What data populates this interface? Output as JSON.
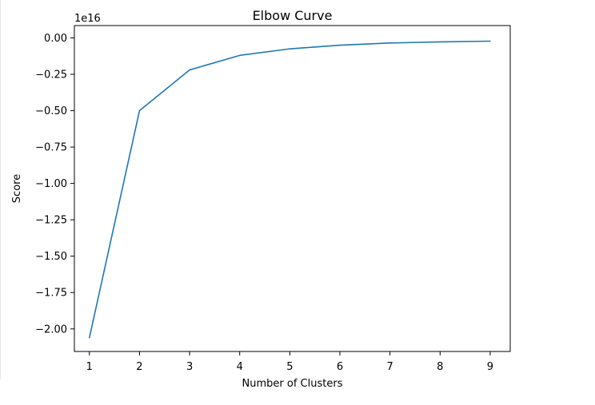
{
  "chart_data": {
    "type": "line",
    "title": "Elbow Curve",
    "xlabel": "Number of Clusters",
    "ylabel": "Score",
    "offset_label": "1e16",
    "x": [
      1,
      2,
      3,
      4,
      5,
      6,
      7,
      8,
      9
    ],
    "series": [
      {
        "values": [
          -2.06,
          -0.5,
          -0.22,
          -0.12,
          -0.075,
          -0.05,
          -0.035,
          -0.027,
          -0.022
        ],
        "color": "#1f77b4"
      }
    ],
    "xlim": [
      0.7,
      9.4
    ],
    "ylim": [
      -2.155,
      0.085
    ],
    "xticks": [
      1,
      2,
      3,
      4,
      5,
      6,
      7,
      8,
      9
    ],
    "xtick_labels": [
      "1",
      "2",
      "3",
      "4",
      "5",
      "6",
      "7",
      "8",
      "9"
    ],
    "yticks": [
      0.0,
      -0.25,
      -0.5,
      -0.75,
      -1.0,
      -1.25,
      -1.5,
      -1.75,
      -2.0
    ],
    "ytick_labels": [
      "0.00",
      "−0.25",
      "−0.50",
      "−0.75",
      "−1.00",
      "−1.25",
      "−1.50",
      "−1.75",
      "−2.00"
    ],
    "grid": false,
    "legend": "none"
  }
}
